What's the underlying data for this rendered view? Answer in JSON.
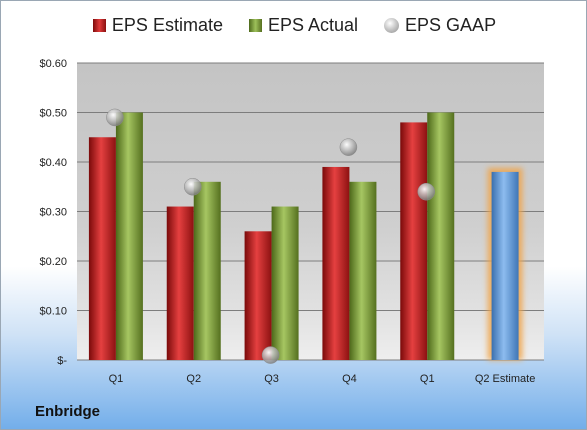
{
  "company": "Enbridge",
  "chart_data": {
    "type": "bar",
    "categories": [
      "Q1",
      "Q2",
      "Q3",
      "Q4",
      "Q1",
      "Q2 Estimate"
    ],
    "series": [
      {
        "name": "EPS Estimate",
        "values": [
          0.45,
          0.31,
          0.26,
          0.39,
          0.48,
          0.38
        ]
      },
      {
        "name": "EPS Actual",
        "values": [
          0.5,
          0.36,
          0.31,
          0.36,
          0.5,
          null
        ]
      },
      {
        "name": "EPS GAAP",
        "values": [
          0.49,
          0.35,
          0.01,
          0.43,
          0.34,
          null
        ]
      }
    ],
    "ylim": [
      0,
      0.6
    ],
    "yticks": [
      0,
      0.1,
      0.2,
      0.3,
      0.4,
      0.5,
      0.6
    ],
    "ytick_labels": [
      "$-",
      "$0.10",
      "$0.20",
      "$0.30",
      "$0.40",
      "$0.50",
      "$0.60"
    ],
    "legend_position": "top",
    "grid": true,
    "colors": {
      "estimate": "#c8262a",
      "actual": "#86a843",
      "gaap": "#b5b5b5",
      "forecast_estimate": "#5f97d6",
      "forecast_glow": "#f0a44a"
    }
  }
}
